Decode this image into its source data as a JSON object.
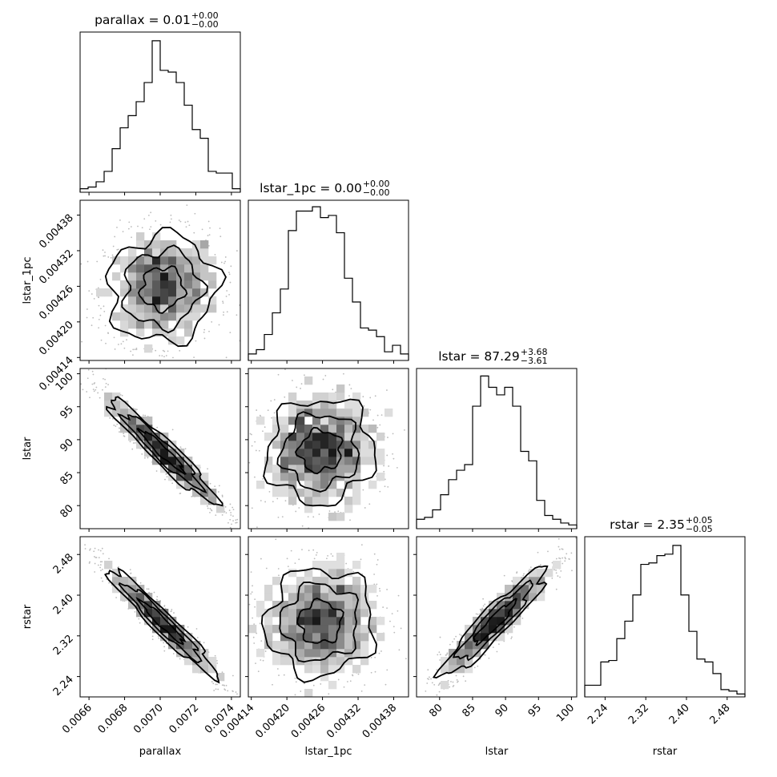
{
  "chart_data": {
    "type": "corner",
    "parameters": [
      {
        "name": "parallax",
        "title_main": "parallax = 0.01",
        "title_plus": "+0.00",
        "title_minus": "−0.00",
        "range": [
          0.00655,
          0.00745
        ],
        "ticks": [
          0.0066,
          0.0068,
          0.007,
          0.0072,
          0.0074
        ],
        "tick_labels": [
          "0.0066",
          "0.0068",
          "0.0070",
          "0.0072",
          "0.0074"
        ],
        "hist_counts": [
          2,
          3,
          6,
          12,
          25,
          37,
          44,
          52,
          63,
          87,
          70,
          69,
          63,
          50,
          36,
          31,
          12,
          11,
          11,
          2
        ],
        "hist_ymax": 92
      },
      {
        "name": "lstar_1pc",
        "title_main": "lstar_1pc = 0.00",
        "title_plus": "+0.00",
        "title_minus": "−0.00",
        "range": [
          0.004135,
          0.004405
        ],
        "ticks": [
          0.00414,
          0.0042,
          0.00426,
          0.00432,
          0.00438
        ],
        "tick_labels": [
          "0.00414",
          "0.00420",
          "0.00426",
          "0.00432",
          "0.00438"
        ],
        "hist_counts": [
          3,
          5,
          12,
          22,
          33,
          60,
          69,
          69,
          71,
          66,
          67,
          59,
          38,
          27,
          15,
          14,
          11,
          4,
          7,
          3
        ],
        "hist_ymax": 74
      },
      {
        "name": "lstar",
        "title_main": "lstar = 87.29",
        "title_plus": "+3.68",
        "title_minus": "−3.61",
        "range": [
          76.5,
          100.8
        ],
        "ticks": [
          80,
          85,
          90,
          95,
          100
        ],
        "tick_labels": [
          "80",
          "85",
          "90",
          "95",
          "100"
        ],
        "hist_counts": [
          5,
          6,
          10,
          18,
          26,
          31,
          34,
          65,
          81,
          75,
          71,
          75,
          65,
          41,
          36,
          15,
          7,
          5,
          3,
          2
        ],
        "hist_ymax": 85
      },
      {
        "name": "rstar",
        "title_main": "rstar = 2.35",
        "title_plus": "+0.05",
        "title_minus": "−0.05",
        "range": [
          2.2,
          2.515
        ],
        "ticks": [
          2.24,
          2.32,
          2.4,
          2.48
        ],
        "tick_labels": [
          "2.24",
          "2.32",
          "2.40",
          "2.48"
        ],
        "hist_counts": [
          8,
          8,
          24,
          25,
          40,
          52,
          70,
          91,
          92,
          97,
          98,
          104,
          70,
          45,
          26,
          24,
          16,
          5,
          4,
          2
        ],
        "hist_ymax": 110
      }
    ],
    "correlations": {
      "0-1": 0.05,
      "0-2": -0.95,
      "1-2": 0.05,
      "0-3": -0.96,
      "1-3": 0.02,
      "2-3": 0.93
    },
    "grid": false,
    "legend": "none"
  }
}
